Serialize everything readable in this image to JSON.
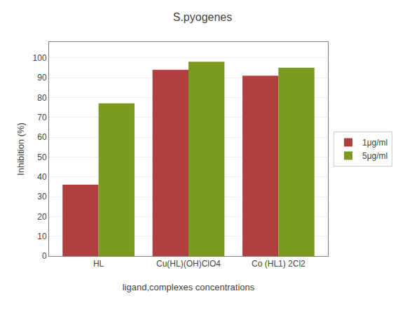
{
  "chart_data": {
    "type": "bar",
    "title": "S.pyogenes",
    "xlabel": "ligand,complexes concentrations",
    "ylabel": "Inhibition (%)",
    "categories": [
      "HL",
      "Cu(HL)(OH)ClO4",
      "Co (HL1) 2Cl2"
    ],
    "series": [
      {
        "name": "1μg/ml",
        "color": "#B04040",
        "values": [
          36,
          94,
          91
        ]
      },
      {
        "name": "5μg/ml",
        "color": "#7A9A20",
        "values": [
          77,
          98,
          95
        ]
      }
    ],
    "ylim": [
      0,
      108
    ],
    "yticks": [
      0,
      10,
      20,
      30,
      40,
      50,
      60,
      70,
      80,
      90,
      100
    ],
    "grid": true,
    "legend": "right"
  }
}
